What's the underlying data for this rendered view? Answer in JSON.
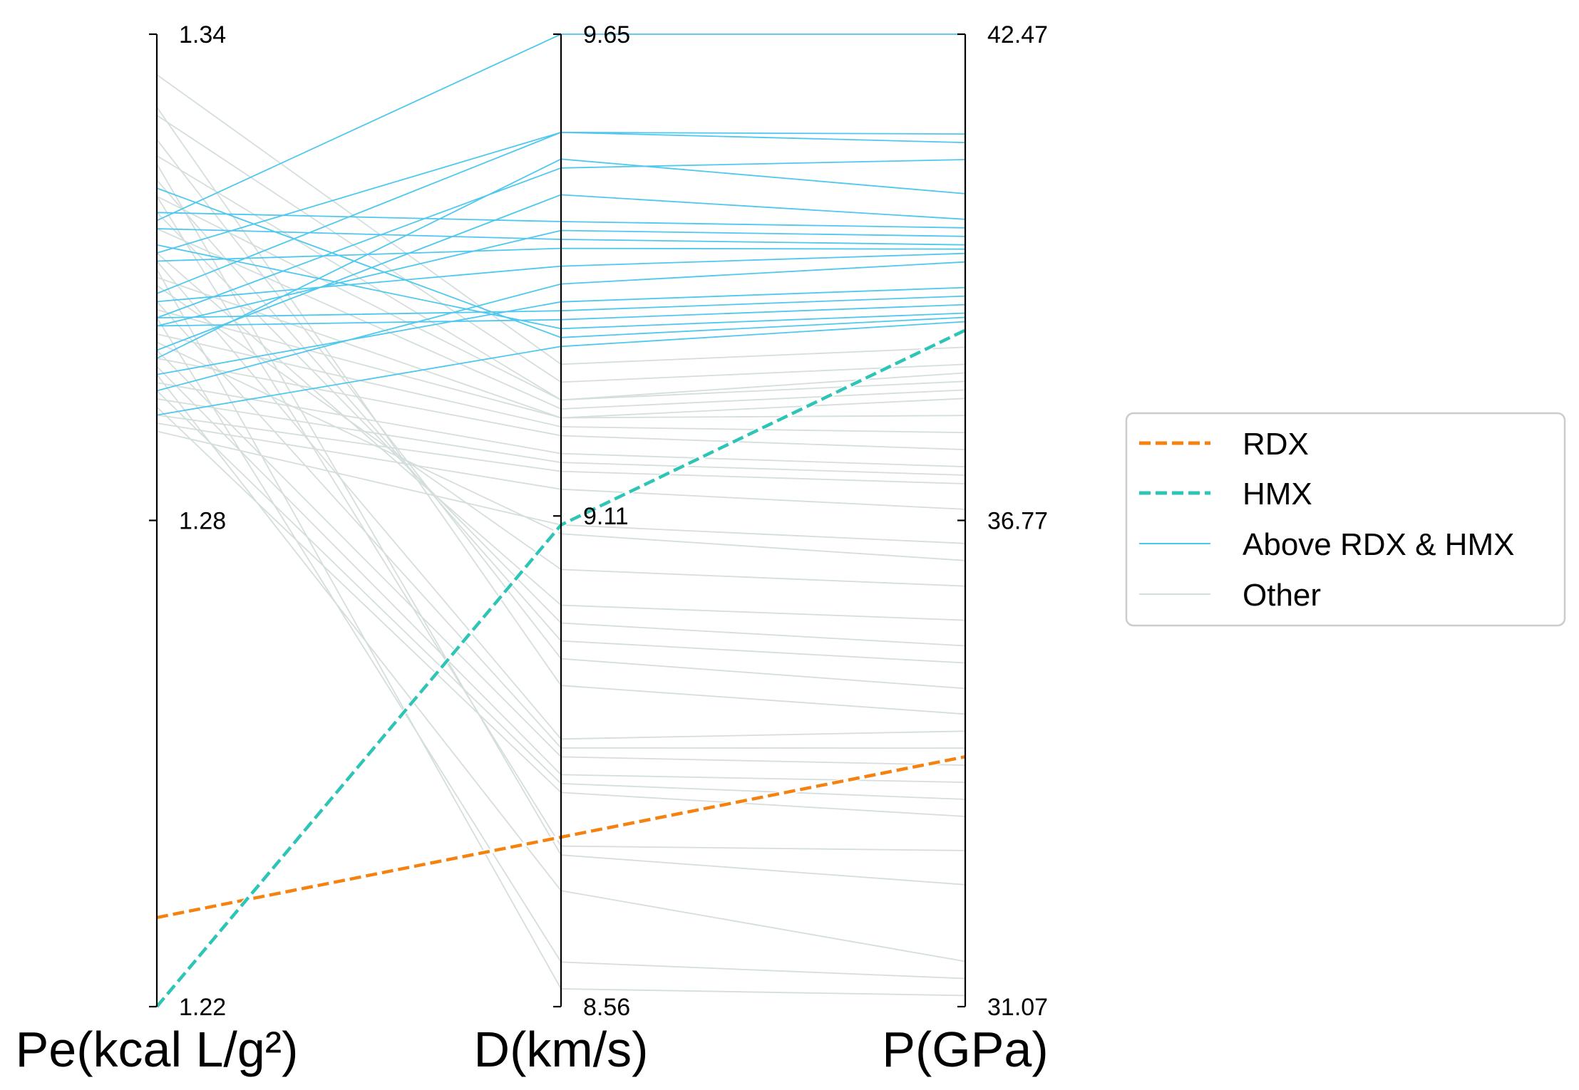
{
  "chart_data": {
    "type": "parallel-coordinates",
    "axes": [
      {
        "label": "Pe(kcal L/g²)",
        "min": 1.22,
        "max": 1.34,
        "ticks": [
          "1.34",
          "1.28",
          "1.22"
        ]
      },
      {
        "label": "D(km/s)",
        "min": 8.56,
        "max": 9.65,
        "ticks": [
          "9.65",
          "9.11",
          "8.56"
        ]
      },
      {
        "label": "P(GPa)",
        "min": 31.07,
        "max": 42.47,
        "ticks": [
          "42.47",
          "36.77",
          "31.07"
        ]
      }
    ],
    "legend": {
      "placement": "right",
      "entries": [
        {
          "label": "RDX",
          "color": "#f5820f",
          "style": "dashed"
        },
        {
          "label": "HMX",
          "color": "#2ec4b6",
          "style": "dashed"
        },
        {
          "label": "Above RDX & HMX",
          "color": "#4ec8ef",
          "style": "solid"
        },
        {
          "label": "Other",
          "color": "#d4dedc",
          "style": "solid"
        }
      ]
    },
    "series": [
      {
        "name": "RDX",
        "values": [
          1.231,
          8.75,
          34.0
        ]
      },
      {
        "name": "HMX",
        "values": [
          1.22,
          9.1,
          39.0
        ]
      },
      {
        "name": "Above RDX & HMX",
        "lines": [
          [
            1.317,
            9.65,
            42.47
          ],
          [
            1.308,
            9.54,
            41.3
          ],
          [
            1.313,
            9.54,
            41.2
          ],
          [
            1.305,
            9.5,
            41.0
          ],
          [
            1.3,
            9.51,
            40.6
          ],
          [
            1.301,
            9.47,
            40.3
          ],
          [
            1.318,
            9.44,
            40.2
          ],
          [
            1.304,
            9.43,
            40.1
          ],
          [
            1.316,
            9.42,
            40.0
          ],
          [
            1.312,
            9.41,
            39.95
          ],
          [
            1.307,
            9.39,
            39.9
          ],
          [
            1.296,
            9.37,
            39.8
          ],
          [
            1.298,
            9.35,
            39.5
          ],
          [
            1.305,
            9.34,
            39.4
          ],
          [
            1.304,
            9.33,
            39.3
          ],
          [
            1.314,
            9.32,
            39.2
          ],
          [
            1.321,
            9.31,
            39.15
          ],
          [
            1.293,
            9.3,
            39.1
          ]
        ]
      },
      {
        "name": "Other",
        "lines": [
          [
            1.335,
            9.28,
            38.8
          ],
          [
            1.33,
            9.26,
            38.6
          ],
          [
            1.325,
            9.24,
            38.5
          ],
          [
            1.32,
            9.24,
            38.4
          ],
          [
            1.316,
            9.23,
            38.3
          ],
          [
            1.31,
            9.22,
            38.2
          ],
          [
            1.306,
            9.22,
            38.0
          ],
          [
            1.303,
            9.21,
            37.8
          ],
          [
            1.3,
            9.2,
            37.6
          ],
          [
            1.297,
            9.18,
            37.4
          ],
          [
            1.295,
            9.17,
            37.3
          ],
          [
            1.293,
            9.16,
            37.2
          ],
          [
            1.292,
            9.14,
            36.9
          ],
          [
            1.291,
            9.1,
            36.5
          ],
          [
            1.302,
            9.09,
            36.3
          ],
          [
            1.309,
            9.05,
            36.0
          ],
          [
            1.313,
            9.01,
            35.6
          ],
          [
            1.318,
            8.99,
            35.3
          ],
          [
            1.322,
            8.97,
            35.1
          ],
          [
            1.327,
            8.95,
            34.8
          ],
          [
            1.331,
            8.92,
            34.5
          ],
          [
            1.312,
            8.86,
            34.3
          ],
          [
            1.307,
            8.85,
            34.1
          ],
          [
            1.301,
            8.84,
            33.9
          ],
          [
            1.299,
            8.82,
            33.7
          ],
          [
            1.296,
            8.81,
            33.5
          ],
          [
            1.294,
            8.8,
            33.3
          ],
          [
            1.32,
            8.74,
            32.9
          ],
          [
            1.324,
            8.73,
            32.5
          ],
          [
            1.298,
            8.69,
            31.6
          ],
          [
            1.305,
            8.61,
            31.4
          ],
          [
            1.311,
            8.58,
            31.2
          ]
        ]
      }
    ]
  }
}
